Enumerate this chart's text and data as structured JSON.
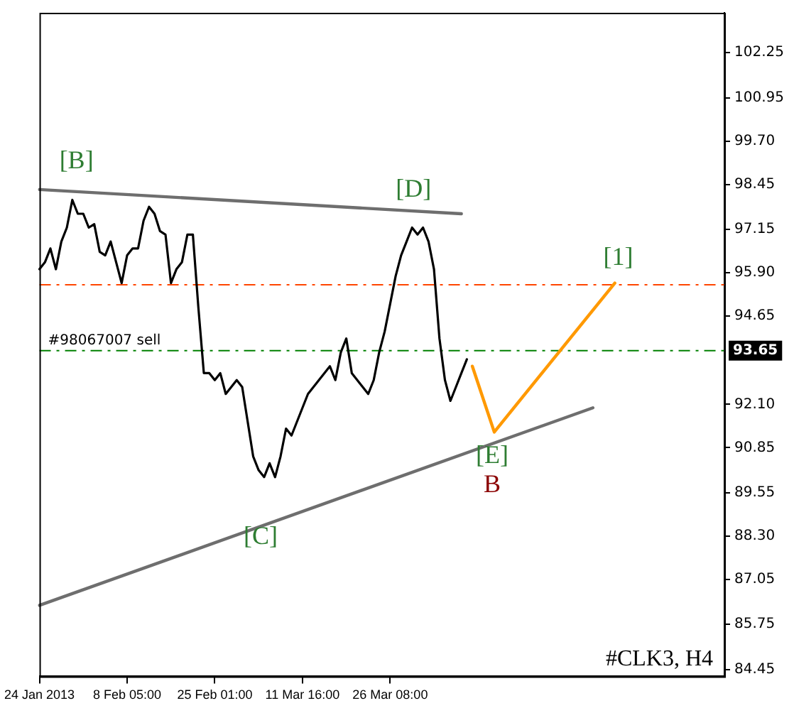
{
  "chart_data": {
    "type": "line",
    "ylim": [
      84.25,
      103.4
    ],
    "categories": [
      "24 Jan 2013",
      null,
      null,
      null,
      null,
      null,
      null,
      null,
      null,
      null,
      null,
      null,
      null,
      null,
      null,
      null,
      "8 Feb 05:00",
      null,
      null,
      null,
      null,
      null,
      null,
      null,
      null,
      null,
      null,
      null,
      null,
      null,
      null,
      null,
      "25 Feb 01:00",
      null,
      null,
      null,
      null,
      null,
      null,
      null,
      null,
      null,
      null,
      null,
      null,
      null,
      null,
      null,
      "11 Mar 16:00",
      null,
      null,
      null,
      null,
      null,
      null,
      null,
      null,
      null,
      null,
      null,
      null,
      null,
      null,
      null,
      "26 Mar 08:00",
      null,
      null,
      null,
      null,
      null,
      null,
      null,
      null,
      null,
      null,
      null,
      null,
      null,
      null,
      null,
      null,
      null,
      null,
      null,
      null,
      null,
      null,
      null,
      null,
      null,
      null,
      null,
      null,
      null,
      null,
      null,
      null,
      null,
      null,
      null,
      null,
      null,
      null,
      null,
      null,
      null,
      null,
      null,
      null,
      null,
      null,
      null,
      null,
      null,
      null,
      null,
      null,
      null,
      null,
      null,
      null,
      null,
      null,
      null,
      null,
      null
    ],
    "yticks": [
      84.45,
      85.75,
      87.05,
      {
        "value": 88.3,
        "label": "88.30"
      },
      89.55,
      90.85,
      {
        "value": 92.1,
        "label": "92.10"
      },
      94.65,
      {
        "value": 95.9,
        "label": "95.90"
      },
      97.15,
      98.45,
      {
        "value": 99.7,
        "label": "99.70"
      },
      100.95,
      102.25
    ],
    "series": [
      {
        "color": "#000000",
        "values": [
          96.0,
          96.2,
          96.6,
          96.0,
          96.8,
          97.2,
          98.0,
          97.6,
          97.6,
          97.2,
          97.3,
          96.5,
          96.4,
          96.8,
          96.2,
          95.6,
          96.4,
          96.6,
          96.6,
          97.4,
          97.8,
          97.6,
          97.1,
          97.0,
          95.6,
          96.0,
          96.2,
          97.0,
          97.0,
          94.9,
          93.0,
          93.0,
          92.8,
          93.0,
          92.4,
          92.6,
          92.8,
          92.6,
          91.6,
          90.6,
          90.2,
          90.0,
          90.4,
          90.0,
          90.6,
          91.4,
          91.2,
          91.6,
          92.0,
          92.4,
          92.6,
          92.8,
          93.0,
          93.2,
          92.8,
          93.6,
          94.0,
          93.0,
          92.8,
          92.6,
          92.4,
          92.8,
          93.6,
          94.2,
          95.0,
          95.8,
          96.4,
          96.8,
          97.2,
          97.0,
          97.2,
          96.8,
          96.0,
          94.0,
          92.8,
          92.2,
          92.6,
          93.0,
          93.4,
          null,
          null,
          null,
          null,
          null,
          null,
          null,
          null,
          null,
          null,
          null,
          null,
          null,
          null,
          null,
          null,
          null,
          null,
          null,
          null,
          null,
          null,
          null,
          null,
          null,
          null,
          null,
          null,
          null,
          null,
          null,
          null,
          null,
          null,
          null,
          null,
          null,
          null,
          null,
          null,
          null,
          null,
          null,
          null,
          null,
          null,
          null
        ]
      },
      {
        "color": "#6e6e6e",
        "values": [
          98.3,
          null,
          null,
          null,
          null,
          null,
          null,
          null,
          null,
          null,
          null,
          null,
          null,
          null,
          null,
          null,
          null,
          null,
          null,
          null,
          null,
          null,
          null,
          null,
          null,
          null,
          null,
          null,
          null,
          null,
          null,
          null,
          null,
          null,
          null,
          null,
          null,
          null,
          null,
          null,
          null,
          null,
          null,
          null,
          null,
          null,
          null,
          null,
          null,
          null,
          null,
          null,
          null,
          null,
          null,
          null,
          null,
          null,
          null,
          null,
          null,
          null,
          null,
          null,
          null,
          null,
          null,
          null,
          null,
          null,
          null,
          null,
          null,
          null,
          null,
          null,
          null,
          97.6,
          null,
          null,
          null,
          null,
          null,
          null,
          null,
          null,
          null,
          null,
          null,
          null,
          null,
          null,
          null,
          null,
          null,
          null,
          null,
          null,
          null,
          null,
          null,
          null,
          null,
          null,
          null,
          null,
          null,
          null,
          null,
          null,
          null,
          null,
          null,
          null,
          null,
          null,
          null,
          null,
          null,
          null,
          null,
          null,
          null,
          null,
          null,
          null
        ]
      },
      {
        "color": "#6e6e6e",
        "values": [
          86.3,
          null,
          null,
          null,
          null,
          null,
          null,
          null,
          null,
          null,
          null,
          null,
          null,
          null,
          null,
          null,
          null,
          null,
          null,
          null,
          null,
          null,
          null,
          null,
          null,
          null,
          null,
          null,
          null,
          null,
          null,
          null,
          null,
          null,
          null,
          null,
          null,
          null,
          null,
          null,
          null,
          null,
          null,
          null,
          null,
          null,
          null,
          null,
          null,
          null,
          null,
          null,
          null,
          null,
          null,
          null,
          null,
          null,
          null,
          null,
          null,
          null,
          null,
          null,
          null,
          null,
          null,
          null,
          null,
          null,
          null,
          null,
          null,
          null,
          null,
          null,
          null,
          null,
          null,
          null,
          null,
          null,
          null,
          null,
          null,
          null,
          null,
          null,
          null,
          null,
          null,
          null,
          null,
          null,
          null,
          null,
          null,
          null,
          null,
          null,
          null,
          92.0,
          null,
          null,
          null,
          null,
          null,
          null,
          null,
          null,
          null,
          null,
          null,
          null,
          null,
          null,
          null,
          null,
          null,
          null,
          null,
          null,
          null,
          null,
          null,
          null
        ]
      },
      {
        "color": "#ff9900",
        "values": [
          null,
          null,
          null,
          null,
          null,
          null,
          null,
          null,
          null,
          null,
          null,
          null,
          null,
          null,
          null,
          null,
          null,
          null,
          null,
          null,
          null,
          null,
          null,
          null,
          null,
          null,
          null,
          null,
          null,
          null,
          null,
          null,
          null,
          null,
          null,
          null,
          null,
          null,
          null,
          null,
          null,
          null,
          null,
          null,
          null,
          null,
          null,
          null,
          null,
          null,
          null,
          null,
          null,
          null,
          null,
          null,
          null,
          null,
          null,
          null,
          null,
          null,
          null,
          null,
          null,
          null,
          null,
          null,
          null,
          null,
          null,
          null,
          null,
          null,
          null,
          null,
          null,
          null,
          null,
          93.2,
          null,
          null,
          null,
          91.3,
          null,
          null,
          null,
          null,
          null,
          null,
          null,
          null,
          null,
          null,
          null,
          null,
          null,
          null,
          null,
          null,
          null,
          null,
          null,
          null,
          null,
          95.6,
          null,
          null,
          null,
          null,
          null,
          null,
          null,
          null,
          null,
          null,
          null,
          null,
          null,
          null,
          null,
          null,
          null,
          null,
          null,
          null
        ]
      }
    ],
    "ref_lines": [
      {
        "axis": "y",
        "value": 95.55,
        "color": "#ff4500",
        "line_style": "dashed"
      },
      {
        "axis": "y",
        "value": 93.65,
        "color": "#008000",
        "line_style": "dashed",
        "label": "#98067007 sell"
      }
    ],
    "annotations": [
      "[B]",
      "[D]",
      "[C]",
      "[E]",
      "B",
      "[1]",
      {
        "text": "93.65",
        "y": 93.65
      },
      "#CLK3, H4"
    ],
    "grid": false,
    "legend": false,
    "marker": "none",
    "line_style": "solid"
  }
}
